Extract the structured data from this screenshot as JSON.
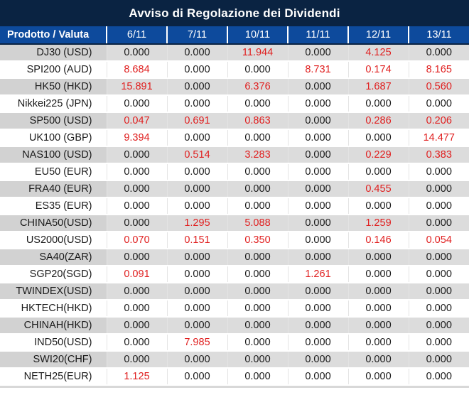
{
  "title": "Avviso di Regolazione dei Dividendi",
  "zero_value": "0.000",
  "colors": {
    "title_bar": "#0a2342",
    "header_blue": "#0d4a9c",
    "nonzero_red": "#e01f1f",
    "text_black": "#1a1a1a",
    "stripe_label_gray": "#d2d2d2",
    "stripe_data_gray": "#dcdcdc",
    "column_separator": "#e4e4e4"
  },
  "table": {
    "columns": [
      "Prodotto / Valuta",
      "6/11",
      "7/11",
      "10/11",
      "11/11",
      "12/11",
      "13/11"
    ],
    "rows": [
      {
        "product": "DJ30 (USD)",
        "values": [
          "0.000",
          "0.000",
          "11.944",
          "0.000",
          "4.125",
          "0.000"
        ]
      },
      {
        "product": "SPI200 (AUD)",
        "values": [
          "8.684",
          "0.000",
          "0.000",
          "8.731",
          "0.174",
          "8.165"
        ]
      },
      {
        "product": "HK50 (HKD)",
        "values": [
          "15.891",
          "0.000",
          "6.376",
          "0.000",
          "1.687",
          "0.560"
        ]
      },
      {
        "product": "Nikkei225 (JPN)",
        "values": [
          "0.000",
          "0.000",
          "0.000",
          "0.000",
          "0.000",
          "0.000"
        ]
      },
      {
        "product": "SP500 (USD)",
        "values": [
          "0.047",
          "0.691",
          "0.863",
          "0.000",
          "0.286",
          "0.206"
        ]
      },
      {
        "product": "UK100 (GBP)",
        "values": [
          "9.394",
          "0.000",
          "0.000",
          "0.000",
          "0.000",
          "14.477"
        ]
      },
      {
        "product": "NAS100 (USD)",
        "values": [
          "0.000",
          "0.514",
          "3.283",
          "0.000",
          "0.229",
          "0.383"
        ]
      },
      {
        "product": "EU50 (EUR)",
        "values": [
          "0.000",
          "0.000",
          "0.000",
          "0.000",
          "0.000",
          "0.000"
        ]
      },
      {
        "product": "FRA40 (EUR)",
        "values": [
          "0.000",
          "0.000",
          "0.000",
          "0.000",
          "0.455",
          "0.000"
        ]
      },
      {
        "product": "ES35 (EUR)",
        "values": [
          "0.000",
          "0.000",
          "0.000",
          "0.000",
          "0.000",
          "0.000"
        ]
      },
      {
        "product": "CHINA50(USD)",
        "values": [
          "0.000",
          "1.295",
          "5.088",
          "0.000",
          "1.259",
          "0.000"
        ]
      },
      {
        "product": "US2000(USD)",
        "values": [
          "0.070",
          "0.151",
          "0.350",
          "0.000",
          "0.146",
          "0.054"
        ]
      },
      {
        "product": "SA40(ZAR)",
        "values": [
          "0.000",
          "0.000",
          "0.000",
          "0.000",
          "0.000",
          "0.000"
        ]
      },
      {
        "product": "SGP20(SGD)",
        "values": [
          "0.091",
          "0.000",
          "0.000",
          "1.261",
          "0.000",
          "0.000"
        ]
      },
      {
        "product": "TWINDEX(USD)",
        "values": [
          "0.000",
          "0.000",
          "0.000",
          "0.000",
          "0.000",
          "0.000"
        ]
      },
      {
        "product": "HKTECH(HKD)",
        "values": [
          "0.000",
          "0.000",
          "0.000",
          "0.000",
          "0.000",
          "0.000"
        ]
      },
      {
        "product": "CHINAH(HKD)",
        "values": [
          "0.000",
          "0.000",
          "0.000",
          "0.000",
          "0.000",
          "0.000"
        ]
      },
      {
        "product": "IND50(USD)",
        "values": [
          "0.000",
          "7.985",
          "0.000",
          "0.000",
          "0.000",
          "0.000"
        ]
      },
      {
        "product": "SWI20(CHF)",
        "values": [
          "0.000",
          "0.000",
          "0.000",
          "0.000",
          "0.000",
          "0.000"
        ]
      },
      {
        "product": "NETH25(EUR)",
        "values": [
          "1.125",
          "0.000",
          "0.000",
          "0.000",
          "0.000",
          "0.000"
        ]
      }
    ]
  }
}
